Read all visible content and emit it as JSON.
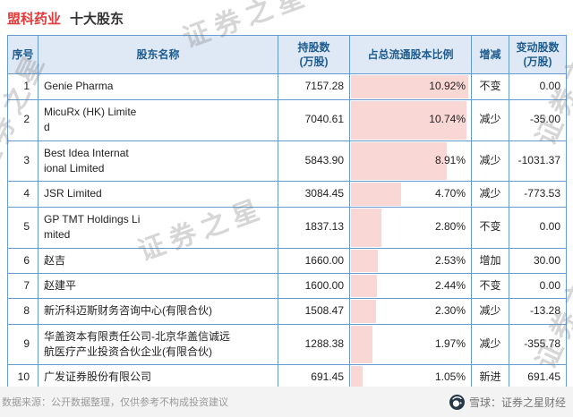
{
  "page": {
    "title_company": "盟科药业",
    "title_suffix": "十大股东",
    "watermark": "证券之星",
    "footer": {
      "source_note": "数据来源：公开数据整理，仅供参考不构成投资建议",
      "brand": "雪球：证券之星财经"
    }
  },
  "colors": {
    "title_red": "#e23b3b",
    "header_blue_bg": "#dfe9f5",
    "header_blue_text": "#1e5c8f",
    "border_blue": "#659bd2",
    "bar_pink": "#f9d7d5",
    "down_green": "#14a05a",
    "up_red": "#e53333"
  },
  "table": {
    "headers": {
      "index": "序号",
      "name": "股东名称",
      "shares": "持股数\n(万股)",
      "pct": "占总流通股本比例",
      "trend": "增减",
      "change": "变动股数\n(万股)"
    },
    "rows": [
      {
        "idx": "1",
        "name": "Genie Pharma",
        "shares": "7157.28",
        "pct": 10.92,
        "pct_label": "10.92%",
        "trend": "flat",
        "trend_label": "不变",
        "change": "0.00"
      },
      {
        "idx": "2",
        "name": "MicuRx (HK) Limite\nd",
        "shares": "7040.61",
        "pct": 10.74,
        "pct_label": "10.74%",
        "trend": "down",
        "trend_label": "减少",
        "change": "-35.00"
      },
      {
        "idx": "3",
        "name": "Best Idea Internat\nional Limited",
        "shares": "5843.90",
        "pct": 8.91,
        "pct_label": "8.91%",
        "trend": "down",
        "trend_label": "减少",
        "change": "-1031.37"
      },
      {
        "idx": "4",
        "name": "JSR Limited",
        "shares": "3084.45",
        "pct": 4.7,
        "pct_label": "4.70%",
        "trend": "down",
        "trend_label": "减少",
        "change": "-773.53"
      },
      {
        "idx": "5",
        "name": "GP TMT Holdings Li\nmited",
        "shares": "1837.13",
        "pct": 2.8,
        "pct_label": "2.80%",
        "trend": "flat",
        "trend_label": "不变",
        "change": "0.00"
      },
      {
        "idx": "6",
        "name": "赵吉",
        "shares": "1660.00",
        "pct": 2.53,
        "pct_label": "2.53%",
        "trend": "up",
        "trend_label": "增加",
        "change": "30.00"
      },
      {
        "idx": "7",
        "name": "赵建平",
        "shares": "1600.00",
        "pct": 2.44,
        "pct_label": "2.44%",
        "trend": "flat",
        "trend_label": "不变",
        "change": "0.00"
      },
      {
        "idx": "8",
        "name": "新沂科迈斯财务咨询中心(有限合伙)",
        "shares": "1508.47",
        "pct": 2.3,
        "pct_label": "2.30%",
        "trend": "down",
        "trend_label": "减少",
        "change": "-13.28"
      },
      {
        "idx": "9",
        "name": "华盖资本有限责任公司-北京华盖信诚远\n航医疗产业投资合伙企业(有限合伙)",
        "shares": "1288.38",
        "pct": 1.97,
        "pct_label": "1.97%",
        "trend": "down",
        "trend_label": "减少",
        "change": "-355.78"
      },
      {
        "idx": "10",
        "name": "广发证券股份有限公司",
        "shares": "691.45",
        "pct": 1.05,
        "pct_label": "1.05%",
        "trend": "new",
        "trend_label": "新进",
        "change": "691.45"
      }
    ]
  },
  "chart_data": {
    "type": "table",
    "title": "盟科药业 十大股东",
    "columns": [
      "序号",
      "股东名称",
      "持股数(万股)",
      "占总流通股本比例",
      "增减",
      "变动股数(万股)"
    ],
    "rows": [
      [
        1,
        "Genie Pharma",
        7157.28,
        "10.92%",
        "不变",
        0.0
      ],
      [
        2,
        "MicuRx (HK) Limited",
        7040.61,
        "10.74%",
        "减少",
        -35.0
      ],
      [
        3,
        "Best Idea International Limited",
        5843.9,
        "8.91%",
        "减少",
        -1031.37
      ],
      [
        4,
        "JSR Limited",
        3084.45,
        "4.70%",
        "减少",
        -773.53
      ],
      [
        5,
        "GP TMT Holdings Limited",
        1837.13,
        "2.80%",
        "不变",
        0.0
      ],
      [
        6,
        "赵吉",
        1660.0,
        "2.53%",
        "增加",
        30.0
      ],
      [
        7,
        "赵建平",
        1600.0,
        "2.44%",
        "不变",
        0.0
      ],
      [
        8,
        "新沂科迈斯财务咨询中心(有限合伙)",
        1508.47,
        "2.30%",
        "减少",
        -13.28
      ],
      [
        9,
        "华盖资本有限责任公司-北京华盖信诚远航医疗产业投资合伙企业(有限合伙)",
        1288.38,
        "1.97%",
        "减少",
        -355.78
      ],
      [
        10,
        "广发证券股份有限公司",
        691.45,
        "1.05%",
        "新进",
        691.45
      ]
    ],
    "notes": "占总流通股本比例 column shows pink proportional bars behind the percentages"
  }
}
